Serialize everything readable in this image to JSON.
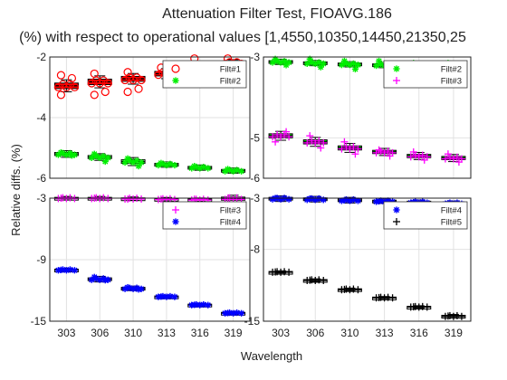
{
  "figure": {
    "title": "Attenuation Filter Test, FIOAVG.186",
    "subtitle": "(%) with respect to operational values [1,4550,10350,14450,21350,25",
    "ylabel": "Relative diffs. (%)",
    "xlabel": "Wavelength"
  },
  "chart_data": {
    "type": "boxplot",
    "categories": [
      "303",
      "306",
      "310",
      "313",
      "316",
      "319"
    ],
    "colors": {
      "Filt#1": "#ff0000",
      "Filt#2": "#00ee00",
      "Filt#3": "#ff00ff",
      "Filt#4": "#0000ff",
      "Filt#5": "#000000"
    },
    "panels": [
      {
        "id": "top-left",
        "ylim": [
          -6,
          -2
        ],
        "yticks": [
          -6,
          -4,
          -2
        ],
        "ytick_labels": [
          "-6",
          "-4",
          "-2"
        ],
        "legend": [
          "Filt#1",
          "Filt#2"
        ],
        "legend_position": "top-right",
        "series": [
          {
            "name": "Filt#1",
            "box_color": "#ff0000",
            "medians": [
              -2.95,
              -2.82,
              -2.72,
              -2.55,
              -2.3,
              -2.2
            ],
            "iqr": [
              0.18,
              0.18,
              0.16,
              0.15,
              0.12,
              0.1
            ],
            "outliers": [
              [
                -2.6,
                -2.7,
                -3.25
              ],
              [
                -2.55,
                -3.15,
                -3.25
              ],
              [
                -2.5,
                -3.05,
                -3.15
              ],
              [
                -2.35,
                -2.45
              ],
              [
                -2.05
              ],
              [
                -2.05
              ]
            ]
          },
          {
            "name": "Filt#2",
            "box_color": "#000000",
            "medians": [
              -5.2,
              -5.3,
              -5.45,
              -5.55,
              -5.65,
              -5.75
            ],
            "iqr": [
              0.1,
              0.1,
              0.12,
              0.08,
              0.08,
              0.08
            ],
            "outliers": [
              [
                -5.15,
                -5.25
              ],
              [
                -5.2,
                -5.45
              ],
              [
                -5.35,
                -5.6
              ],
              [
                -5.5
              ],
              [
                -5.6
              ],
              [
                -5.7
              ]
            ]
          }
        ]
      },
      {
        "id": "top-right",
        "ylim": [
          -6,
          -3
        ],
        "yticks": [
          -6,
          -5,
          -3
        ],
        "ytick_labels": [
          "-6",
          "-5",
          "-3"
        ],
        "legend": [
          "Filt#2",
          "Filt#3"
        ],
        "legend_position": "top-right",
        "series": [
          {
            "name": "Filt#2",
            "box_color": "#000000",
            "medians": [
              -3.12,
              -3.15,
              -3.18,
              -3.2,
              -3.25,
              -3.25
            ],
            "iqr": [
              0.06,
              0.06,
              0.06,
              0.06,
              0.05,
              0.05
            ],
            "outliers": [
              [
                -3.05,
                -3.2
              ],
              [
                -3.05,
                -3.25
              ],
              [
                -3.1,
                -3.3
              ],
              [
                -3.1,
                -3.35
              ],
              [
                -3.15,
                -3.3
              ],
              [
                -3.15,
                -3.3
              ]
            ]
          },
          {
            "name": "Filt#3",
            "box_color": "#00ee00",
            "medians": [
              -4.95,
              -5.1,
              -5.25,
              -5.35,
              -5.45,
              -5.5
            ],
            "iqr": [
              0.1,
              0.1,
              0.1,
              0.08,
              0.08,
              0.08
            ],
            "outliers": [
              [
                -5.1,
                -4.85
              ],
              [
                -4.95,
                -5.25
              ],
              [
                -5.1,
                -5.4
              ],
              [
                -5.3,
                -5.45
              ],
              [
                -5.35,
                -5.55
              ],
              [
                -5.4,
                -5.6
              ]
            ]
          }
        ]
      },
      {
        "id": "bottom-left",
        "ylim": [
          -15,
          -3
        ],
        "yticks": [
          -15,
          -9,
          -3
        ],
        "ytick_labels": [
          "-15",
          "-9",
          "-3"
        ],
        "legend": [
          "Filt#3",
          "Filt#4"
        ],
        "legend_position": "top-right",
        "series": [
          {
            "name": "Filt#3",
            "box_color": "#000000",
            "medians": [
              -3.0,
              -3.0,
              -3.05,
              -3.1,
              -3.15,
              -3.05
            ],
            "iqr": [
              0.15,
              0.15,
              0.15,
              0.15,
              0.15,
              0.3
            ],
            "outliers": [
              [
                -3.0
              ],
              [
                -3.0
              ],
              [
                -3.1
              ],
              [
                -3.1
              ],
              [
                -3.1
              ],
              [
                -3.0
              ]
            ]
          },
          {
            "name": "Filt#4",
            "box_color": "#000000",
            "medians": [
              -10.0,
              -10.9,
              -11.8,
              -12.6,
              -13.4,
              -14.2
            ],
            "iqr": [
              0.15,
              0.25,
              0.2,
              0.12,
              0.12,
              0.12
            ],
            "outliers": [
              [
                -10.0
              ],
              [
                -10.7,
                -11.0
              ],
              [
                -11.7,
                -11.9
              ],
              [
                -12.6
              ],
              [
                -13.4
              ],
              [
                -14.2
              ]
            ]
          }
        ]
      },
      {
        "id": "bottom-right",
        "ylim": [
          -15,
          -3
        ],
        "yticks": [
          -15,
          -8,
          -3
        ],
        "ytick_labels": [
          "-15",
          "-8",
          "-3"
        ],
        "legend": [
          "Filt#4",
          "Filt#5"
        ],
        "legend_position": "top-right",
        "series": [
          {
            "name": "Filt#4",
            "box_color": "#000000",
            "medians": [
              -3.05,
              -3.1,
              -3.2,
              -3.3,
              -3.4,
              -3.5
            ],
            "iqr": [
              0.25,
              0.25,
              0.25,
              0.2,
              0.2,
              0.2
            ],
            "outliers": [
              [
                -3.0
              ],
              [
                -3.05
              ],
              [
                -3.2
              ],
              [
                -3.3
              ],
              [
                -3.4
              ],
              [
                -3.5
              ]
            ]
          },
          {
            "name": "Filt#5",
            "box_color": "#000000",
            "medians": [
              -10.2,
              -11.0,
              -11.9,
              -12.7,
              -13.6,
              -14.5
            ],
            "iqr": [
              0.1,
              0.12,
              0.12,
              0.1,
              0.1,
              0.15
            ],
            "outliers": [
              [
                -10.2
              ],
              [
                -11.0
              ],
              [
                -11.9
              ],
              [
                -12.7
              ],
              [
                -13.6
              ],
              [
                -14.5
              ]
            ]
          }
        ]
      }
    ]
  }
}
